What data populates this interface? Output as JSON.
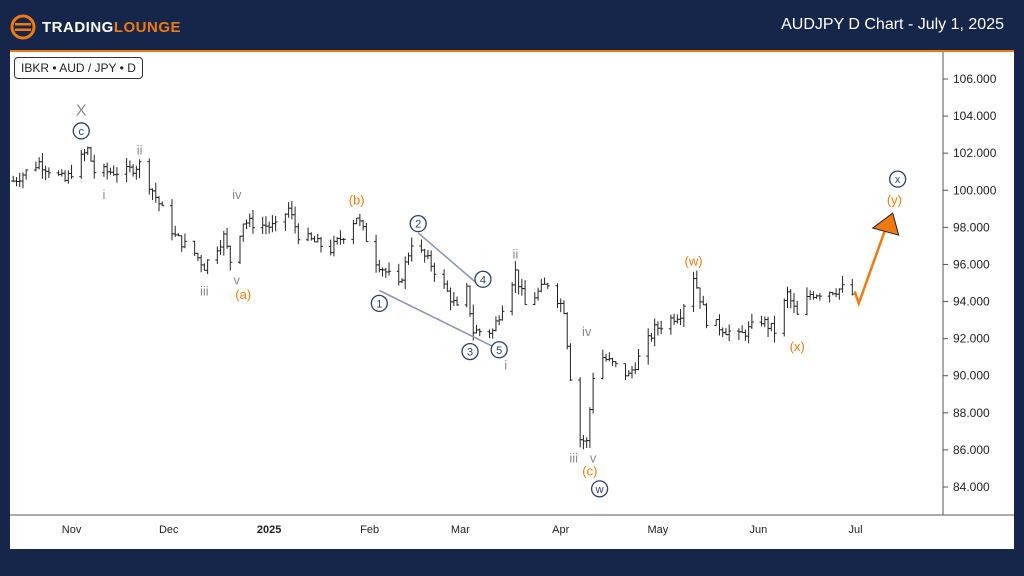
{
  "header": {
    "brand_part1": "TRADING",
    "brand_part2": "LOUNGE",
    "title": "AUDJPY D Chart - July 1, 2025"
  },
  "symbol_label": "IBKR • AUD / JPY • D",
  "colors": {
    "background": "#16264a",
    "accent": "#f07a10",
    "wave_navy": "#2c3e6b",
    "wave_gray": "#8a8a8a",
    "bars": "#222222"
  },
  "chart_data": {
    "type": "ohlc",
    "ylim": [
      82.5,
      108
    ],
    "yticks": [
      "84.000",
      "86.000",
      "88.000",
      "90.000",
      "92.000",
      "94.000",
      "96.000",
      "98.000",
      "100.000",
      "102.000",
      "104.000",
      "106.000"
    ],
    "xticks": [
      {
        "date": "2024-11-01",
        "label": "Nov"
      },
      {
        "date": "2024-12-01",
        "label": "Dec"
      },
      {
        "date": "2025-01-01",
        "label": "2025"
      },
      {
        "date": "2025-02-01",
        "label": "Feb"
      },
      {
        "date": "2025-03-01",
        "label": "Mar"
      },
      {
        "date": "2025-04-01",
        "label": "Apr"
      },
      {
        "date": "2025-05-01",
        "label": "May"
      },
      {
        "date": "2025-06-01",
        "label": "Jun"
      },
      {
        "date": "2025-07-01",
        "label": "Jul"
      }
    ],
    "xlim": [
      "2024-10-13",
      "2025-07-28"
    ],
    "price_path": [
      [
        "2024-10-14",
        100.5
      ],
      [
        "2024-10-22",
        101.5
      ],
      [
        "2024-10-30",
        100.5
      ],
      [
        "2024-11-06",
        102.2
      ],
      [
        "2024-11-08",
        101
      ],
      [
        "2024-11-18",
        101
      ],
      [
        "2024-11-22",
        101.4
      ],
      [
        "2024-11-26",
        100
      ],
      [
        "2024-12-03",
        97.5
      ],
      [
        "2024-12-09",
        96.6
      ],
      [
        "2024-12-12",
        95.9
      ],
      [
        "2024-12-18",
        97.5
      ],
      [
        "2024-12-20",
        96.2
      ],
      [
        "2024-12-24",
        98.3
      ],
      [
        "2025-01-03",
        98
      ],
      [
        "2025-01-07",
        99
      ],
      [
        "2025-01-10",
        97.6
      ],
      [
        "2025-01-20",
        96.8
      ],
      [
        "2025-01-24",
        97.6
      ],
      [
        "2025-01-28",
        98.6
      ],
      [
        "2025-02-03",
        96.2
      ],
      [
        "2025-02-10",
        94.8
      ],
      [
        "2025-02-14",
        97.2
      ],
      [
        "2025-02-20",
        96
      ],
      [
        "2025-02-28",
        93.6
      ],
      [
        "2025-03-03",
        94.6
      ],
      [
        "2025-03-05",
        92.4
      ],
      [
        "2025-03-11",
        92.4
      ],
      [
        "2025-03-18",
        95.6
      ],
      [
        "2025-03-21",
        93.8
      ],
      [
        "2025-03-28",
        95
      ],
      [
        "2025-04-02",
        93.6
      ],
      [
        "2025-04-04",
        90
      ],
      [
        "2025-04-07",
        86.6
      ],
      [
        "2025-04-09",
        86.4
      ],
      [
        "2025-04-11",
        90
      ],
      [
        "2025-04-14",
        91
      ],
      [
        "2025-04-22",
        90
      ],
      [
        "2025-04-30",
        92.5
      ],
      [
        "2025-05-08",
        93.4
      ],
      [
        "2025-05-12",
        95.4
      ],
      [
        "2025-05-16",
        93
      ],
      [
        "2025-05-26",
        92.1
      ],
      [
        "2025-06-02",
        93
      ],
      [
        "2025-06-06",
        92.4
      ],
      [
        "2025-06-10",
        94.4
      ],
      [
        "2025-06-13",
        93.2
      ],
      [
        "2025-06-17",
        94.4
      ],
      [
        "2025-06-27",
        94.7
      ],
      [
        "2025-06-30",
        94.4
      ]
    ],
    "projection": [
      [
        "2025-07-02",
        93.9
      ],
      [
        "2025-07-10",
        97.8
      ]
    ],
    "wave_labels": [
      {
        "text": "X",
        "date": "2024-11-04",
        "price": 104.3,
        "style": "gray"
      },
      {
        "text": "c",
        "date": "2024-11-04",
        "price": 103.2,
        "style": "navy-circle"
      },
      {
        "text": "i",
        "date": "2024-11-11",
        "price": 99.8,
        "style": "gray"
      },
      {
        "text": "ii",
        "date": "2024-11-22",
        "price": 102.2,
        "style": "gray"
      },
      {
        "text": "iii",
        "date": "2024-12-12",
        "price": 94.6,
        "style": "gray"
      },
      {
        "text": "iv",
        "date": "2024-12-22",
        "price": 99.8,
        "style": "gray"
      },
      {
        "text": "v",
        "date": "2024-12-22",
        "price": 95.2,
        "style": "gray"
      },
      {
        "text": "(a)",
        "date": "2024-12-24",
        "price": 94.4,
        "style": "orange"
      },
      {
        "text": "(b)",
        "date": "2025-01-28",
        "price": 99.5,
        "style": "orange"
      },
      {
        "text": "1",
        "date": "2025-02-04",
        "price": 93.9,
        "style": "navy-circle"
      },
      {
        "text": "2",
        "date": "2025-02-16",
        "price": 98.2,
        "style": "navy-circle"
      },
      {
        "text": "3",
        "date": "2025-03-04",
        "price": 91.3,
        "style": "navy-circle"
      },
      {
        "text": "4",
        "date": "2025-03-08",
        "price": 95.2,
        "style": "navy-circle"
      },
      {
        "text": "5",
        "date": "2025-03-13",
        "price": 91.4,
        "style": "navy-circle"
      },
      {
        "text": "i",
        "date": "2025-03-15",
        "price": 90.6,
        "style": "gray"
      },
      {
        "text": "ii",
        "date": "2025-03-18",
        "price": 96.6,
        "style": "gray"
      },
      {
        "text": "iii",
        "date": "2025-04-05",
        "price": 85.6,
        "style": "gray"
      },
      {
        "text": "iv",
        "date": "2025-04-09",
        "price": 92.4,
        "style": "gray"
      },
      {
        "text": "v",
        "date": "2025-04-11",
        "price": 85.6,
        "style": "gray"
      },
      {
        "text": "(c)",
        "date": "2025-04-10",
        "price": 84.9,
        "style": "orange"
      },
      {
        "text": "w",
        "date": "2025-04-13",
        "price": 83.9,
        "style": "navy-circle"
      },
      {
        "text": "(w)",
        "date": "2025-05-12",
        "price": 96.2,
        "style": "orange"
      },
      {
        "text": "(x)",
        "date": "2025-06-13",
        "price": 91.6,
        "style": "orange"
      },
      {
        "text": "(y)",
        "date": "2025-07-13",
        "price": 99.5,
        "style": "orange"
      },
      {
        "text": "x",
        "date": "2025-07-14",
        "price": 100.6,
        "style": "navy-circle"
      }
    ],
    "channel_lines": [
      [
        [
          "2025-02-04",
          94.6
        ],
        [
          "2025-03-12",
          91.5
        ]
      ],
      [
        [
          "2025-02-16",
          97.7
        ],
        [
          "2025-03-06",
          95.0
        ]
      ]
    ]
  }
}
